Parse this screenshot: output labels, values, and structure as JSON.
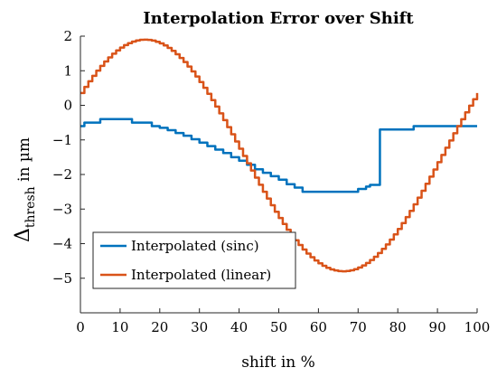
{
  "chart_data": {
    "type": "line",
    "title": "Interpolation Error over Shift",
    "xlabel": "shift in %",
    "ylabel": {
      "main": "Δ",
      "sub": "thresh",
      "rest": " in µm"
    },
    "xlim": [
      0,
      100
    ],
    "ylim": [
      -6,
      2
    ],
    "xticks": [
      0,
      10,
      20,
      30,
      40,
      50,
      60,
      70,
      80,
      90,
      100
    ],
    "yticks": [
      2,
      1,
      0,
      -1,
      -2,
      -3,
      -4,
      -5
    ],
    "grid": false,
    "legend_position": "bottom-left",
    "series": [
      {
        "name": "Interpolated (sinc)",
        "color": "#0072BD",
        "step": true,
        "x": [
          0,
          1,
          5,
          13,
          18,
          20,
          22,
          24,
          26,
          28,
          30,
          32,
          34,
          36,
          38,
          40,
          42,
          44,
          46,
          48,
          50,
          52,
          54,
          56,
          60,
          69,
          70,
          72,
          73,
          75,
          75.5,
          84,
          100
        ],
        "y": [
          -0.6,
          -0.5,
          -0.4,
          -0.5,
          -0.6,
          -0.65,
          -0.72,
          -0.8,
          -0.88,
          -0.98,
          -1.08,
          -1.18,
          -1.28,
          -1.38,
          -1.5,
          -1.6,
          -1.72,
          -1.85,
          -1.95,
          -2.05,
          -2.15,
          -2.28,
          -2.38,
          -2.5,
          -2.5,
          -2.5,
          -2.42,
          -2.35,
          -2.3,
          -2.3,
          -0.7,
          -0.6,
          -0.6
        ]
      },
      {
        "name": "Interpolated (linear)",
        "color": "#D95319",
        "step": true,
        "function": "sine",
        "amplitude": 3.35,
        "offset": -1.45,
        "phase_start": 0.57,
        "step_size": 1,
        "x_range": [
          0,
          100
        ]
      }
    ]
  }
}
